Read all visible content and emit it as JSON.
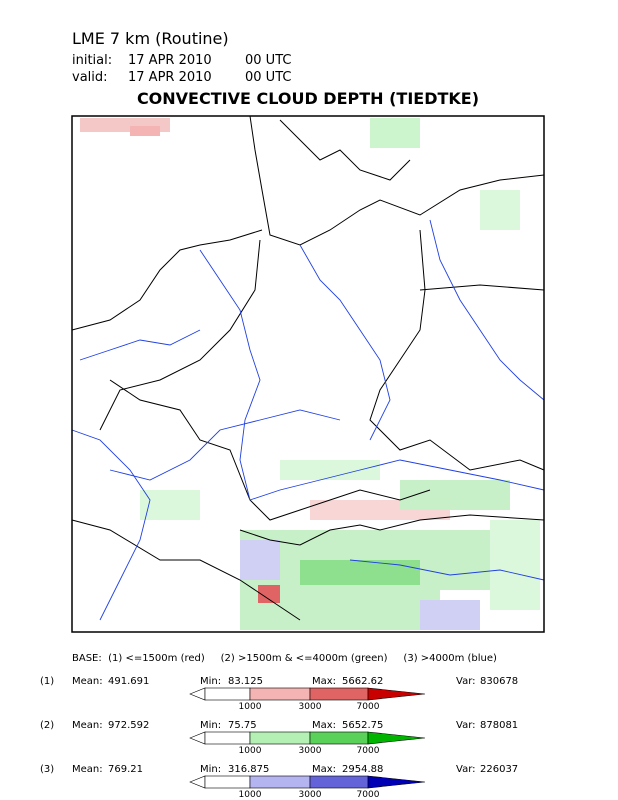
{
  "header": {
    "model": "LME 7 km (Routine)",
    "initial": {
      "label": "initial:",
      "date": "17 APR 2010",
      "time": "00 UTC"
    },
    "valid": {
      "label": "valid:",
      "date": "17 APR 2010",
      "time": "00 UTC"
    },
    "title": "CONVECTIVE CLOUD DEPTH (TIEDTKE)"
  },
  "legend": {
    "base": "BASE:  (1) <=1500m (red)     (2) >1500m & <=4000m (green)     (3) >4000m (blue)",
    "labels": {
      "mean": "Mean:",
      "min": "Min:",
      "max": "Max:",
      "var": "Var:"
    },
    "colorbar_ticks": [
      1000,
      3000,
      7000
    ],
    "rows": [
      {
        "id": "(1)",
        "mean": 491.691,
        "min": 83.125,
        "max": 5662.62,
        "var": 830678,
        "colors": [
          "#ffffff",
          "#f5b4b4",
          "#e06464",
          "#c80000"
        ]
      },
      {
        "id": "(2)",
        "mean": 972.592,
        "min": 75.75,
        "max": 5652.75,
        "var": 878081,
        "colors": [
          "#ffffff",
          "#b4f0b4",
          "#5ad25a",
          "#00b400"
        ]
      },
      {
        "id": "(3)",
        "mean": 769.21,
        "min": 316.875,
        "max": 2954.88,
        "var": 226037,
        "colors": [
          "#ffffff",
          "#b4b4f0",
          "#6464d8",
          "#0000b4"
        ]
      }
    ]
  }
}
